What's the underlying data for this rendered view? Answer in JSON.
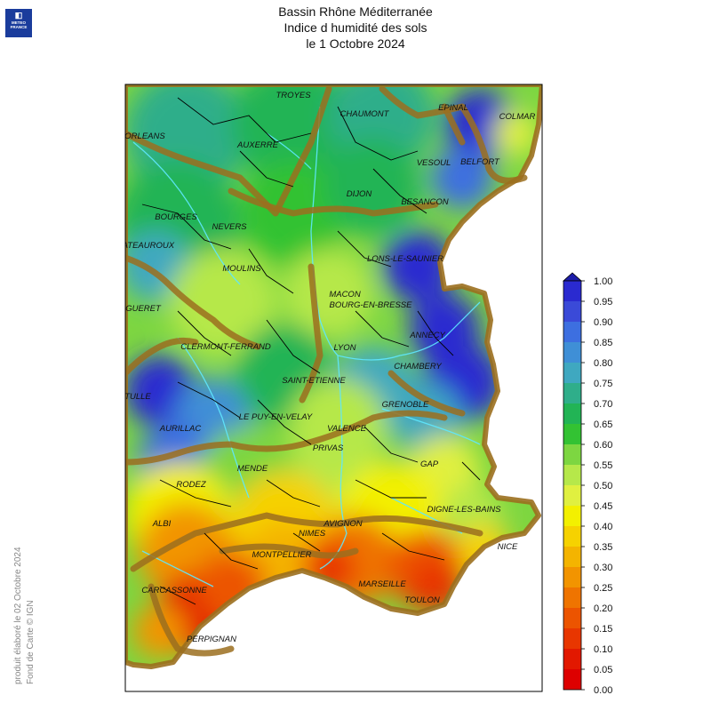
{
  "header": {
    "logo_text": "METEO\nFRANCE",
    "title_line1": "Bassin Rhône Méditerranée",
    "title_line2": "Indice d humidité des sols",
    "title_line3": "le 1 Octobre 2024"
  },
  "credits": {
    "produced": "produit élaboré le 02 Octobre 2024",
    "background": "Fond de Carte © IGN"
  },
  "legend": {
    "ticks": [
      "1.00",
      "0.95",
      "0.90",
      "0.85",
      "0.80",
      "0.75",
      "0.70",
      "0.65",
      "0.60",
      "0.55",
      "0.50",
      "0.45",
      "0.40",
      "0.35",
      "0.30",
      "0.25",
      "0.20",
      "0.15",
      "0.10",
      "0.05",
      "0.00"
    ],
    "colors": [
      "#2a2ad0",
      "#3a4ad8",
      "#3d6fe0",
      "#3f8fd6",
      "#3fa8c0",
      "#2fae8a",
      "#22b455",
      "#33c233",
      "#7dd641",
      "#b6e84a",
      "#e0f040",
      "#f3f000",
      "#f6d200",
      "#f4b400",
      "#f29400",
      "#ef7400",
      "#ec5400",
      "#e83600",
      "#e21800",
      "#dd0000"
    ],
    "cap_color": "#1d1da8"
  },
  "cities": [
    {
      "name": "TROYES"
    },
    {
      "name": "CHAUMONT"
    },
    {
      "name": "EPINAL"
    },
    {
      "name": "COLMAR"
    },
    {
      "name": "ORLEANS"
    },
    {
      "name": "AUXERRE"
    },
    {
      "name": "VESOUL"
    },
    {
      "name": "BELFORT"
    },
    {
      "name": "DIJON"
    },
    {
      "name": "BESANCON"
    },
    {
      "name": "BOURGES"
    },
    {
      "name": "NEVERS"
    },
    {
      "name": "CHATEAUROUX"
    },
    {
      "name": "LONS-LE-SAUNIER"
    },
    {
      "name": "MOULINS"
    },
    {
      "name": "MACON"
    },
    {
      "name": "BOURG-EN-BRESSE"
    },
    {
      "name": "GUERET"
    },
    {
      "name": "ANNECY"
    },
    {
      "name": "CLERMONT-FERRAND"
    },
    {
      "name": "LYON"
    },
    {
      "name": "CHAMBERY"
    },
    {
      "name": "SAINT-ETIENNE"
    },
    {
      "name": "TULLE"
    },
    {
      "name": "GRENOBLE"
    },
    {
      "name": "LE PUY-EN-VELAY"
    },
    {
      "name": "AURILLAC"
    },
    {
      "name": "VALENCE"
    },
    {
      "name": "PRIVAS"
    },
    {
      "name": "GAP"
    },
    {
      "name": "MENDE"
    },
    {
      "name": "RODEZ"
    },
    {
      "name": "DIGNE-LES-BAINS"
    },
    {
      "name": "ALBI"
    },
    {
      "name": "AVIGNON"
    },
    {
      "name": "NIMES"
    },
    {
      "name": "NICE"
    },
    {
      "name": "MONTPELLIER"
    },
    {
      "name": "MARSEILLE"
    },
    {
      "name": "CARCASSONNE"
    },
    {
      "name": "TOULON"
    },
    {
      "name": "PERPIGNAN"
    }
  ]
}
